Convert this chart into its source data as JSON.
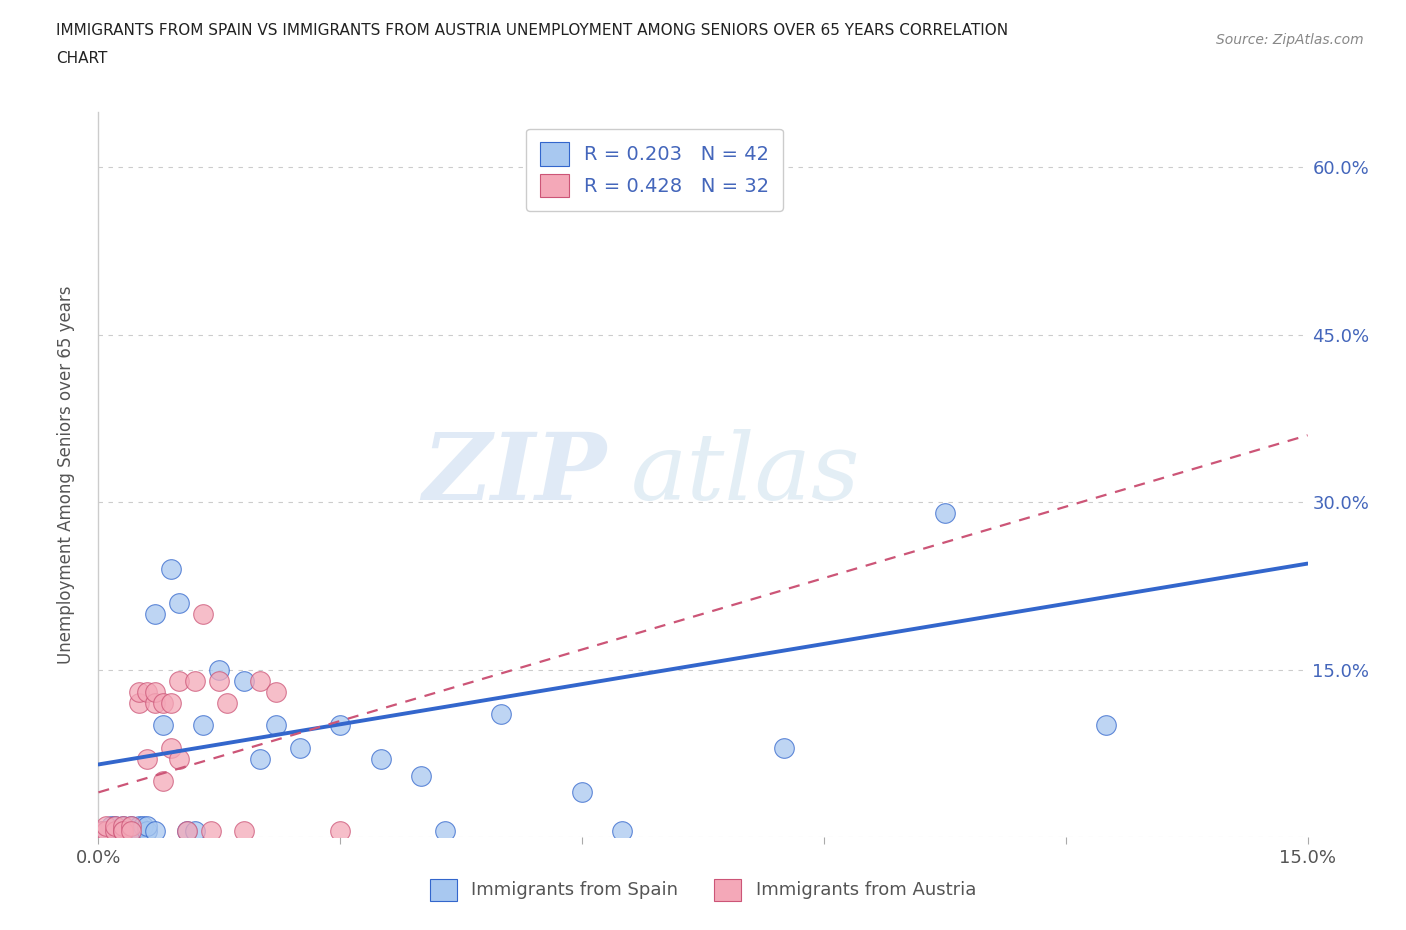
{
  "title_line1": "IMMIGRANTS FROM SPAIN VS IMMIGRANTS FROM AUSTRIA UNEMPLOYMENT AMONG SENIORS OVER 65 YEARS CORRELATION",
  "title_line2": "CHART",
  "source": "Source: ZipAtlas.com",
  "ylabel": "Unemployment Among Seniors over 65 years",
  "xlim": [
    0.0,
    0.15
  ],
  "ylim": [
    0.0,
    0.65
  ],
  "xticks": [
    0.0,
    0.03,
    0.06,
    0.09,
    0.12,
    0.15
  ],
  "ytick_positions": [
    0.0,
    0.15,
    0.3,
    0.45,
    0.6
  ],
  "ytick_labels": [
    "",
    "15.0%",
    "30.0%",
    "45.0%",
    "60.0%"
  ],
  "xtick_labels": [
    "0.0%",
    "",
    "",
    "",
    "",
    "15.0%"
  ],
  "spain_color": "#a8c8f0",
  "austria_color": "#f4a8b8",
  "spain_line_color": "#3366cc",
  "austria_line_color": "#cc5577",
  "legend_text_color": "#4466bb",
  "watermark_zip": "ZIP",
  "watermark_atlas": "atlas",
  "spain_R": "0.203",
  "spain_N": "42",
  "austria_R": "0.428",
  "austria_N": "32",
  "spain_x": [
    0.0005,
    0.001,
    0.0015,
    0.002,
    0.002,
    0.0025,
    0.003,
    0.003,
    0.003,
    0.0035,
    0.004,
    0.004,
    0.0045,
    0.005,
    0.005,
    0.005,
    0.0055,
    0.006,
    0.006,
    0.007,
    0.007,
    0.008,
    0.009,
    0.01,
    0.011,
    0.012,
    0.013,
    0.015,
    0.018,
    0.02,
    0.022,
    0.025,
    0.03,
    0.035,
    0.04,
    0.043,
    0.05,
    0.06,
    0.065,
    0.085,
    0.105,
    0.125
  ],
  "spain_y": [
    0.005,
    0.005,
    0.01,
    0.01,
    0.005,
    0.005,
    0.005,
    0.01,
    0.005,
    0.005,
    0.005,
    0.01,
    0.005,
    0.005,
    0.01,
    0.005,
    0.01,
    0.005,
    0.01,
    0.005,
    0.2,
    0.1,
    0.24,
    0.21,
    0.005,
    0.005,
    0.1,
    0.15,
    0.14,
    0.07,
    0.1,
    0.08,
    0.1,
    0.07,
    0.055,
    0.005,
    0.11,
    0.04,
    0.005,
    0.08,
    0.29,
    0.1
  ],
  "austria_x": [
    0.0005,
    0.001,
    0.001,
    0.002,
    0.002,
    0.003,
    0.003,
    0.003,
    0.004,
    0.004,
    0.005,
    0.005,
    0.006,
    0.006,
    0.007,
    0.007,
    0.008,
    0.008,
    0.009,
    0.009,
    0.01,
    0.01,
    0.011,
    0.012,
    0.013,
    0.014,
    0.015,
    0.016,
    0.018,
    0.02,
    0.022,
    0.03
  ],
  "austria_y": [
    0.005,
    0.005,
    0.01,
    0.005,
    0.01,
    0.005,
    0.01,
    0.005,
    0.01,
    0.005,
    0.12,
    0.13,
    0.13,
    0.07,
    0.12,
    0.13,
    0.12,
    0.05,
    0.08,
    0.12,
    0.14,
    0.07,
    0.005,
    0.14,
    0.2,
    0.005,
    0.14,
    0.12,
    0.005,
    0.14,
    0.13,
    0.005
  ],
  "background_color": "#ffffff",
  "grid_color": "#cccccc"
}
